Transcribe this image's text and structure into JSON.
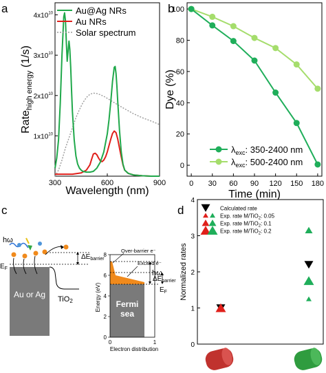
{
  "panels": {
    "a": {
      "letter": "a"
    },
    "b": {
      "letter": "b"
    },
    "c": {
      "letter": "c"
    },
    "d": {
      "letter": "d"
    }
  },
  "chart_data": [
    {
      "id": "a",
      "type": "line",
      "xlabel": "Wavelength (nm)",
      "ylabel_main": "Rate",
      "ylabel_sub": "high energy",
      "ylabel_unit": " (1/s)",
      "xlim": [
        300,
        900
      ],
      "ylim": [
        0,
        43000000000.0
      ],
      "xticks": [
        "300",
        "600",
        "900"
      ],
      "yticks": [
        {
          "value": 10000000000.0,
          "base": "1x10",
          "exp": "10"
        },
        {
          "value": 20000000000.0,
          "base": "2x10",
          "exp": "10"
        },
        {
          "value": 30000000000.0,
          "base": "3x10",
          "exp": "10"
        },
        {
          "value": 40000000000.0,
          "base": "4x10",
          "exp": "10"
        }
      ],
      "legend_position": "top-right",
      "series": [
        {
          "name": "Au@Ag NRs",
          "color": "#1fa84a",
          "style": "solid",
          "x": [
            300,
            310,
            320,
            330,
            340,
            350,
            355,
            360,
            365,
            370,
            375,
            380,
            385,
            390,
            395,
            400,
            410,
            420,
            430,
            440,
            450,
            460,
            480,
            500,
            520,
            540,
            560,
            580,
            600,
            610,
            620,
            630,
            640,
            645,
            650,
            655,
            660,
            670,
            680,
            690,
            700,
            720,
            750,
            800,
            850,
            900
          ],
          "y": [
            2000000000.0,
            4500000000.0,
            9000000000.0,
            18000000000.0,
            30000000000.0,
            39500000000.0,
            40500000000.0,
            38500000000.0,
            33000000000.0,
            28500000000.0,
            31000000000.0,
            33500000000.0,
            31500000000.0,
            27000000000.0,
            21000000000.0,
            16000000000.0,
            9000000000.0,
            5000000000.0,
            3000000000.0,
            2000000000.0,
            1500000000.0,
            1200000000.0,
            1000000000.0,
            1000000000.0,
            1200000000.0,
            2000000000.0,
            3500000000.0,
            6000000000.0,
            10500000000.0,
            14000000000.0,
            18500000000.0,
            23500000000.0,
            27000000000.0,
            27200000000.0,
            25500000000.0,
            22500000000.0,
            18500000000.0,
            11500000000.0,
            6000000000.0,
            3000000000.0,
            1500000000.0,
            700000000.0,
            300000000.0,
            100000000.0,
            0,
            0
          ]
        },
        {
          "name": "Au NRs",
          "color": "#e0201b",
          "style": "solid",
          "x": [
            300,
            350,
            400,
            450,
            480,
            500,
            510,
            520,
            530,
            540,
            550,
            560,
            570,
            580,
            590,
            600,
            610,
            620,
            630,
            640,
            650,
            660,
            670,
            680,
            690,
            700,
            720,
            750,
            800,
            850,
            900
          ],
          "y": [
            500000000.0,
            500000000.0,
            500000000.0,
            800000000.0,
            1500000000.0,
            2800000000.0,
            4200000000.0,
            5500000000.0,
            5700000000.0,
            5300000000.0,
            4500000000.0,
            3800000000.0,
            3600000000.0,
            4000000000.0,
            4800000000.0,
            6000000000.0,
            7600000000.0,
            9200000000.0,
            10600000000.0,
            11200000000.0,
            10800000000.0,
            9200000000.0,
            7000000000.0,
            4800000000.0,
            2800000000.0,
            1500000000.0,
            700000000.0,
            300000000.0,
            100000000.0,
            0,
            0
          ]
        },
        {
          "name": "Solar spectrum",
          "color": "#999999",
          "style": "dotted",
          "x": [
            300,
            320,
            340,
            360,
            380,
            400,
            420,
            440,
            460,
            480,
            500,
            520,
            540,
            560,
            580,
            600,
            630,
            660,
            700,
            750,
            800,
            850,
            900
          ],
          "y": [
            0,
            1500000000.0,
            4000000000.0,
            7000000000.0,
            9500000000.0,
            12000000000.0,
            14500000000.0,
            16500000000.0,
            18200000000.0,
            19500000000.0,
            20300000000.0,
            20600000000.0,
            20500000000.0,
            20200000000.0,
            19800000000.0,
            19300000000.0,
            18500000000.0,
            17700000000.0,
            16700000000.0,
            15500000000.0,
            14500000000.0,
            13700000000.0,
            12800000000.0
          ]
        }
      ]
    },
    {
      "id": "b",
      "type": "line",
      "xlabel": "Time (min)",
      "ylabel": "Dye (%)",
      "xlim": [
        -6,
        186
      ],
      "ylim": [
        -7,
        104
      ],
      "xticks": [
        0,
        30,
        60,
        90,
        120,
        150,
        180
      ],
      "yticks": [
        0,
        20,
        40,
        60,
        80,
        100
      ],
      "legend_position": "bottom-left",
      "series": [
        {
          "name": "350-2400 nm",
          "legend_lambda": "λ",
          "legend_sub": "exc",
          "color": "#1fae5a",
          "x": [
            0,
            30,
            60,
            90,
            120,
            150,
            180
          ],
          "y": [
            100,
            89.5,
            79.5,
            67,
            46.5,
            27,
            0.5
          ]
        },
        {
          "name": "500-2400 nm",
          "legend_lambda": "λ",
          "legend_sub": "exc",
          "color": "#a5dd6c",
          "x": [
            0,
            30,
            60,
            90,
            120,
            150,
            180
          ],
          "y": [
            100,
            95,
            89,
            81.5,
            75,
            64.5,
            49
          ]
        }
      ]
    },
    {
      "id": "d",
      "type": "scatter",
      "ylabel": "Normalized rates",
      "ylim": [
        0,
        4
      ],
      "yticks": [
        0,
        1,
        2,
        3,
        4
      ],
      "categories": [
        "Au NR",
        "Au@Ag NR"
      ],
      "legend": [
        {
          "label": "Calculated rate",
          "marker": "down-triangle",
          "colors": [
            "#000000"
          ]
        },
        {
          "label": "Exp. rate M/TiO",
          "sub": "2",
          "tail": ": 0.05",
          "marker": "triangle-s",
          "colors": [
            "#e0201b",
            "#1fae5a"
          ]
        },
        {
          "label": "Exp. rate M/TiO",
          "sub": "2",
          "tail": ": 0.1",
          "marker": "triangle-m",
          "colors": [
            "#e0201b",
            "#1fae5a"
          ]
        },
        {
          "label": "Exp. rate M/TiO",
          "sub": "2",
          "tail": ": 0.2",
          "marker": "triangle-l",
          "colors": [
            "#e0201b",
            "#1fae5a"
          ]
        }
      ],
      "points": [
        {
          "category": 0,
          "y": 1.0,
          "marker": "down-triangle",
          "color": "#000000"
        },
        {
          "category": 0,
          "y": 1.0,
          "marker": "triangle-l",
          "color": "#e0201b"
        },
        {
          "category": 0,
          "y": 1.0,
          "marker": "triangle-s",
          "color": "#e0201b"
        },
        {
          "category": 1,
          "y": 3.15,
          "marker": "triangle-m",
          "color": "#1fae5a"
        },
        {
          "category": 1,
          "y": 2.2,
          "marker": "down-triangle",
          "color": "#000000"
        },
        {
          "category": 1,
          "y": 1.75,
          "marker": "triangle-l",
          "color": "#1fae5a"
        },
        {
          "category": 1,
          "y": 1.25,
          "marker": "triangle-s",
          "color": "#1fae5a"
        }
      ],
      "rod_colors": [
        "#c0322e",
        "#2f9c3f"
      ]
    }
  ],
  "diagram_c": {
    "left": {
      "hw": "hω",
      "metal": "Au or Ag",
      "tio2_base": "TiO",
      "tio2_sub": "2",
      "delta": "ΔE",
      "delta_sub": "barrier",
      "ef": "E",
      "ef_sub": "F"
    },
    "right": {
      "ylabel": "Energy (eV)",
      "xlabel": "Electron distribution",
      "yticks": [
        "0",
        "2",
        "4",
        "6",
        "8"
      ],
      "xticks": [
        "0",
        "1"
      ],
      "over_barrier": "Over-barrier e⁻",
      "excited": "Excited e⁻",
      "hw": "hω",
      "delta": "ΔE",
      "delta_sub": "barrier",
      "ef": "E",
      "ef_sub": "F",
      "sea_line1": "Fermi",
      "sea_line2": "sea"
    }
  }
}
